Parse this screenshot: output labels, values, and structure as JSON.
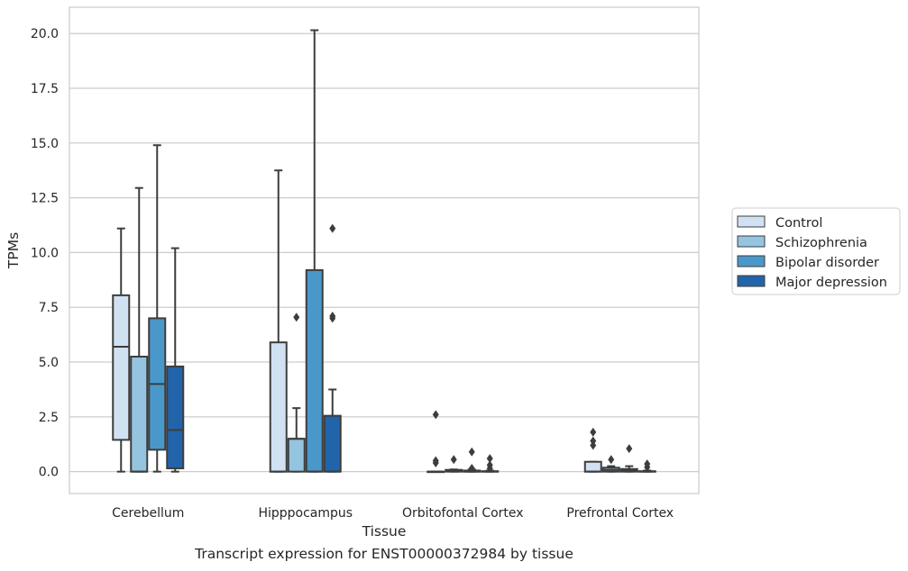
{
  "caption": "Transcript expression for ENST00000372984 by tissue",
  "chart_data": {
    "type": "boxplot",
    "xlabel": "Tissue",
    "ylabel": "TPMs",
    "ylim": [
      -1.0,
      21.2
    ],
    "yticks": [
      0.0,
      2.5,
      5.0,
      7.5,
      10.0,
      12.5,
      15.0,
      17.5,
      20.0
    ],
    "ytick_labels": [
      "0.0",
      "2.5",
      "5.0",
      "7.5",
      "10.0",
      "12.5",
      "15.0",
      "17.5",
      "20.0"
    ],
    "grid": true,
    "legend_position": "right",
    "categories": [
      "Cerebellum",
      "Hipppocampus",
      "Orbitofontal Cortex",
      "Prefrontal Cortex"
    ],
    "series": [
      {
        "name": "Control",
        "color": "#d0e1f2",
        "boxes": [
          {
            "whislo": 0.0,
            "q1": 1.45,
            "med": 5.7,
            "q3": 8.05,
            "whishi": 11.1,
            "fliers": []
          },
          {
            "whislo": 0.0,
            "q1": 0.0,
            "med": 0.0,
            "q3": 5.9,
            "whishi": 13.75,
            "fliers": []
          },
          {
            "whislo": 0.0,
            "q1": 0.0,
            "med": 0.0,
            "q3": 0.0,
            "whishi": 0.0,
            "fliers": [
              2.6,
              0.5,
              0.4
            ]
          },
          {
            "whislo": 0.0,
            "q1": 0.0,
            "med": 0.0,
            "q3": 0.45,
            "whishi": 0.45,
            "fliers": [
              1.8,
              1.4,
              1.2
            ]
          }
        ]
      },
      {
        "name": "Schizophrenia",
        "color": "#94c4df",
        "boxes": [
          {
            "whislo": 0.0,
            "q1": 0.0,
            "med": 0.0,
            "q3": 5.25,
            "whishi": 12.95,
            "fliers": []
          },
          {
            "whislo": 0.0,
            "q1": 0.0,
            "med": 1.5,
            "q3": 1.5,
            "whishi": 2.9,
            "fliers": [
              7.05
            ]
          },
          {
            "whislo": 0.0,
            "q1": 0.0,
            "med": 0.02,
            "q3": 0.08,
            "whishi": 0.1,
            "fliers": [
              0.55
            ]
          },
          {
            "whislo": 0.0,
            "q1": 0.0,
            "med": 0.08,
            "q3": 0.18,
            "whishi": 0.25,
            "fliers": [
              0.55
            ]
          }
        ]
      },
      {
        "name": "Bipolar disorder",
        "color": "#4a98c9",
        "boxes": [
          {
            "whislo": 0.0,
            "q1": 1.0,
            "med": 4.0,
            "q3": 7.0,
            "whishi": 14.9,
            "fliers": []
          },
          {
            "whislo": 0.0,
            "q1": 0.0,
            "med": 0.0,
            "q3": 9.2,
            "whishi": 20.15,
            "fliers": []
          },
          {
            "whislo": 0.0,
            "q1": 0.0,
            "med": 0.0,
            "q3": 0.05,
            "whishi": 0.1,
            "fliers": [
              0.9,
              0.15
            ]
          },
          {
            "whislo": 0.0,
            "q1": 0.0,
            "med": 0.05,
            "q3": 0.12,
            "whishi": 0.25,
            "fliers": [
              1.05
            ]
          }
        ]
      },
      {
        "name": "Major depression",
        "color": "#2264aa",
        "boxes": [
          {
            "whislo": 0.0,
            "q1": 0.15,
            "med": 1.9,
            "q3": 4.8,
            "whishi": 10.2,
            "fliers": []
          },
          {
            "whislo": 0.0,
            "q1": 0.0,
            "med": 0.0,
            "q3": 2.55,
            "whishi": 3.75,
            "fliers": [
              11.1,
              7.1,
              7.0
            ]
          },
          {
            "whislo": 0.0,
            "q1": 0.0,
            "med": 0.0,
            "q3": 0.02,
            "whishi": 0.05,
            "fliers": [
              0.6,
              0.3,
              0.15
            ]
          },
          {
            "whislo": 0.0,
            "q1": 0.0,
            "med": 0.0,
            "q3": 0.02,
            "whishi": 0.05,
            "fliers": [
              0.35,
              0.2
            ]
          }
        ]
      }
    ]
  }
}
